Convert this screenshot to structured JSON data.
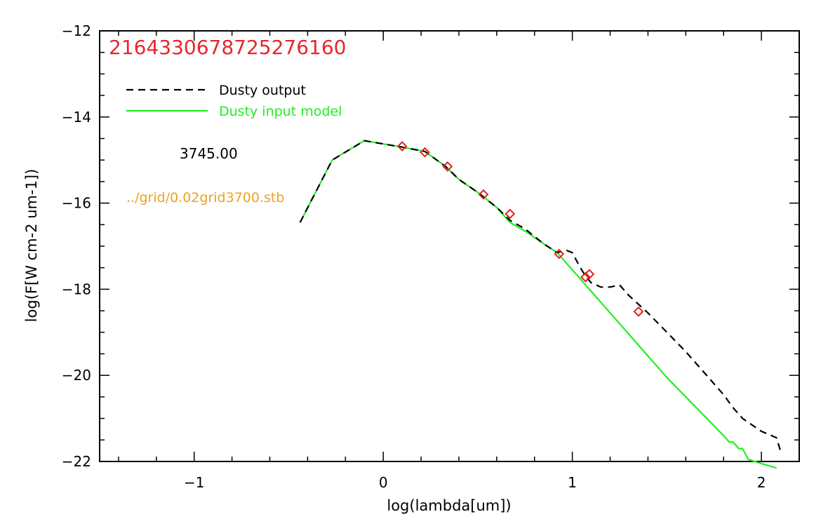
{
  "chart_data": {
    "type": "line",
    "title": "",
    "xlabel": "log(lambda[um])",
    "ylabel": "log(F[W cm-2 um-1])",
    "xlim": [
      -1.5,
      2.2
    ],
    "ylim": [
      -22,
      -12
    ],
    "x_ticks": [
      -1,
      0,
      1,
      2
    ],
    "x_tick_labels": [
      "−1",
      "0",
      "1",
      "2"
    ],
    "y_ticks": [
      -22,
      -20,
      -18,
      -16,
      -14,
      -12
    ],
    "y_tick_labels": [
      "−22",
      "−20",
      "−18",
      "−16",
      "−14",
      "−12"
    ],
    "grid": false,
    "legend": {
      "position": "top-left"
    },
    "annotations": {
      "id_text": "2164330678725276160",
      "temperature": "3745.00",
      "model_file": "../grid/0.02grid3700.stb"
    },
    "colors": {
      "id_text": "#e8262d",
      "model_file": "#f0a020",
      "dusty_output": "#000000",
      "dusty_input": "#22ee22",
      "photometry": "#e02020"
    },
    "series": [
      {
        "name": "Dusty output",
        "style": "dashed",
        "x": [
          -0.44,
          -0.27,
          -0.1,
          0.1,
          0.22,
          0.33,
          0.4,
          0.5,
          0.6,
          0.67,
          0.75,
          0.85,
          0.92,
          0.97,
          1.0,
          1.03,
          1.07,
          1.1,
          1.15,
          1.2,
          1.25,
          1.3,
          1.4,
          1.5,
          1.6,
          1.7,
          1.8,
          1.85,
          1.9,
          1.95,
          2.0,
          2.08,
          2.1
        ],
        "y": [
          -16.45,
          -15.0,
          -14.55,
          -14.7,
          -14.8,
          -15.15,
          -15.45,
          -15.75,
          -16.1,
          -16.4,
          -16.6,
          -16.95,
          -17.15,
          -17.1,
          -17.15,
          -17.4,
          -17.7,
          -17.85,
          -17.95,
          -17.95,
          -17.9,
          -18.15,
          -18.55,
          -19.0,
          -19.45,
          -19.95,
          -20.45,
          -20.75,
          -21.0,
          -21.15,
          -21.3,
          -21.45,
          -21.75
        ]
      },
      {
        "name": "Dusty input model",
        "style": "solid",
        "x": [
          -0.44,
          -0.27,
          -0.1,
          0.1,
          0.22,
          0.33,
          0.4,
          0.5,
          0.6,
          0.67,
          0.75,
          0.85,
          0.92,
          1.0,
          1.1,
          1.2,
          1.3,
          1.4,
          1.5,
          1.6,
          1.7,
          1.8,
          1.83,
          1.85,
          1.88,
          1.9,
          1.93,
          2.0,
          2.08
        ],
        "y": [
          -16.45,
          -15.0,
          -14.55,
          -14.7,
          -14.8,
          -15.15,
          -15.45,
          -15.75,
          -16.1,
          -16.45,
          -16.65,
          -16.95,
          -17.15,
          -17.55,
          -18.05,
          -18.55,
          -19.05,
          -19.55,
          -20.05,
          -20.5,
          -20.95,
          -21.4,
          -21.55,
          -21.55,
          -21.7,
          -21.7,
          -21.95,
          -22.05,
          -22.15
        ]
      },
      {
        "name": "",
        "style": "diamond-markers",
        "x": [
          0.1,
          0.22,
          0.34,
          0.53,
          0.67,
          0.93,
          1.07,
          1.09,
          1.35
        ],
        "y": [
          -14.68,
          -14.82,
          -15.15,
          -15.8,
          -16.25,
          -17.18,
          -17.72,
          -17.65,
          -18.52
        ]
      }
    ]
  }
}
